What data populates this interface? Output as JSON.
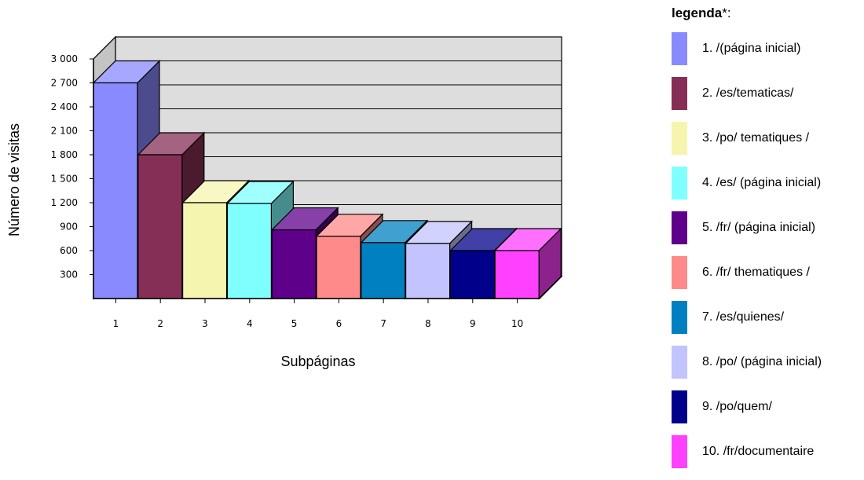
{
  "chart_data": {
    "type": "bar",
    "title": "",
    "xlabel": "Subpáginas",
    "ylabel": "Número de visitas",
    "ylim": [
      0,
      3000
    ],
    "yticks": [
      300,
      600,
      900,
      1200,
      1500,
      1800,
      2100,
      2400,
      2700,
      3000
    ],
    "ytick_labels": [
      "300",
      "600",
      "900",
      "1 200",
      "1 500",
      "1 800",
      "2 100",
      "2 400",
      "2 700",
      "3 000"
    ],
    "categories": [
      "1",
      "2",
      "3",
      "4",
      "5",
      "6",
      "7",
      "8",
      "9",
      "10"
    ],
    "values": [
      2700,
      1800,
      1200,
      1190,
      860,
      780,
      700,
      690,
      600,
      600
    ],
    "colors": [
      "#8a8aff",
      "#862f56",
      "#f5f5b0",
      "#80ffff",
      "#5e0089",
      "#ff8a8a",
      "#0080c0",
      "#c3c3ff",
      "#00008a",
      "#ff40ff"
    ],
    "grid": true,
    "legend_position": "right",
    "legend": {
      "title": "legenda",
      "title_suffix": "*:",
      "entries": [
        "1. /(página inicial)",
        "2. /es/tematicas/",
        "3. /po/ tematiques /",
        "4. /es/ (página inicial)",
        "5. /fr/ (página inicial)",
        "6. /fr/ thematiques /",
        "7. /es/quienes/",
        "8. /po/ (página inicial)",
        "9. /po/quem/",
        "10. /fr/documentaire"
      ]
    }
  }
}
